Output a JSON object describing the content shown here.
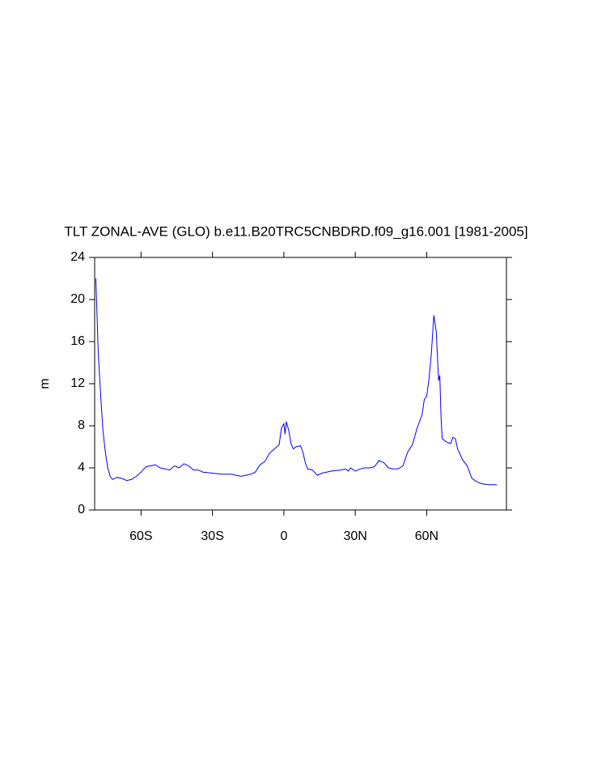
{
  "chart_data": {
    "type": "line",
    "title": "TLT ZONAL-AVE (GLO) b.e11.B20TRC5CNBDRD.f09_g16.001 [1981-2005]",
    "y_label": "m",
    "x": [
      -79,
      -78,
      -77,
      -76,
      -75,
      -74,
      -73,
      -72,
      -70,
      -68,
      -66,
      -64,
      -62,
      -60,
      -58,
      -56,
      -54,
      -52,
      -50,
      -48,
      -46,
      -44,
      -42,
      -40,
      -38,
      -36,
      -34,
      -30,
      -26,
      -22,
      -20,
      -18,
      -16,
      -14,
      -12,
      -10,
      -8,
      -6,
      -4,
      -2,
      -1,
      0,
      0.5,
      1,
      2,
      3,
      4,
      5,
      7,
      8,
      9,
      10,
      12,
      14,
      16,
      18,
      20,
      24,
      26,
      27,
      28,
      30,
      32,
      34,
      36,
      38,
      40,
      42,
      44,
      46,
      48,
      50,
      52,
      54,
      56,
      58,
      59,
      60,
      61,
      62,
      63,
      64,
      65,
      65.5,
      66,
      66.5,
      68,
      70,
      71,
      72,
      73,
      75,
      77,
      78,
      79,
      81,
      83,
      86,
      89.5
    ],
    "series": [
      {
        "name": "TLT",
        "color": "#0000ff",
        "values": [
          22,
          15,
          11,
          7.5,
          5.5,
          4,
          3.2,
          2.9,
          3.1,
          3.0,
          2.8,
          2.9,
          3.2,
          3.6,
          4.1,
          4.2,
          4.3,
          4.0,
          3.9,
          3.8,
          4.2,
          4.0,
          4.4,
          4.2,
          3.8,
          3.8,
          3.6,
          3.5,
          3.4,
          3.4,
          3.3,
          3.2,
          3.3,
          3.4,
          3.6,
          4.3,
          4.6,
          5.4,
          5.8,
          6.2,
          7.8,
          8.2,
          7.2,
          8.4,
          7.6,
          6.3,
          5.8,
          6.0,
          6.1,
          5.5,
          4.5,
          3.9,
          3.8,
          3.3,
          3.5,
          3.6,
          3.7,
          3.8,
          3.9,
          3.7,
          4.0,
          3.7,
          3.9,
          4.0,
          4.0,
          4.1,
          4.7,
          4.5,
          4.0,
          3.9,
          3.9,
          4.2,
          5.5,
          6.2,
          7.8,
          9.0,
          10.5,
          10.8,
          12.5,
          15,
          18.5,
          17,
          12.3,
          12.8,
          9,
          6.8,
          6.5,
          6.3,
          6.9,
          6.8,
          5.8,
          4.8,
          4.2,
          3.6,
          3.0,
          2.7,
          2.5,
          2.4,
          2.4
        ]
      }
    ],
    "xlim": [
      -79.5,
      93.5
    ],
    "xticks": [
      {
        "value": -60,
        "label": "60S"
      },
      {
        "value": -30,
        "label": "30S"
      },
      0,
      {
        "value": 30,
        "label": "30N"
      },
      {
        "value": 60,
        "label": "60N"
      }
    ],
    "ylim": [
      0,
      24
    ],
    "yticks": [
      0,
      4,
      8,
      12,
      16,
      20,
      24
    ]
  }
}
